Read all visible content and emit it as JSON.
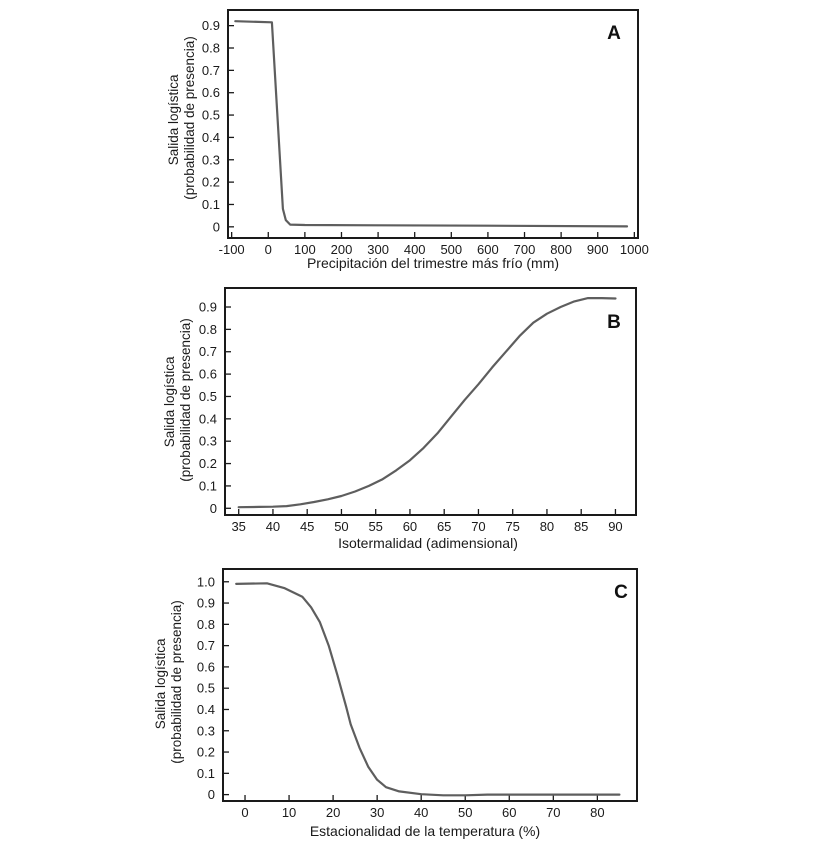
{
  "chart_data": [
    {
      "type": "line",
      "panel_label": "A",
      "xlabel": "Precipitación del trimestre más frío (mm)",
      "ylabel_lines": [
        "Salida logística",
        "(probabilidad de presencia)"
      ],
      "xlim": [
        -110,
        1010
      ],
      "ylim": [
        -0.05,
        0.97
      ],
      "xticks": [
        -100,
        0,
        100,
        200,
        300,
        400,
        500,
        600,
        700,
        800,
        900,
        1000
      ],
      "xtick_labels": [
        "-100",
        "0",
        "100",
        "200",
        "300",
        "400",
        "500",
        "600",
        "700",
        "800",
        "900",
        "1000"
      ],
      "yticks": [
        0,
        0.1,
        0.2,
        0.3,
        0.4,
        0.5,
        0.6,
        0.7,
        0.8,
        0.9
      ],
      "ytick_labels": [
        "0",
        "0.1",
        "0.2",
        "0.3",
        "0.4",
        "0.5",
        "0.6",
        "0.7",
        "0.8",
        "0.9"
      ],
      "series": [
        {
          "x": [
            -90,
            10,
            40,
            48,
            60,
            100,
            300,
            600,
            980
          ],
          "y": [
            0.92,
            0.915,
            0.08,
            0.03,
            0.01,
            0.008,
            0.007,
            0.005,
            0.002
          ]
        }
      ]
    },
    {
      "type": "line",
      "panel_label": "B",
      "xlabel": "Isotermalidad (adimensional)",
      "ylabel_lines": [
        "Salida logística",
        "(probabilidad de presencia)"
      ],
      "xlim": [
        33,
        93
      ],
      "ylim": [
        -0.03,
        0.985
      ],
      "xticks": [
        35,
        40,
        45,
        50,
        55,
        60,
        65,
        70,
        75,
        80,
        85,
        90
      ],
      "xtick_labels": [
        "35",
        "40",
        "45",
        "50",
        "55",
        "60",
        "65",
        "70",
        "75",
        "80",
        "85",
        "90"
      ],
      "yticks": [
        0,
        0.1,
        0.2,
        0.3,
        0.4,
        0.5,
        0.6,
        0.7,
        0.8,
        0.9
      ],
      "ytick_labels": [
        "0",
        "0.1",
        "0.2",
        "0.3",
        "0.4",
        "0.5",
        "0.6",
        "0.7",
        "0.8",
        "0.9"
      ],
      "series": [
        {
          "x": [
            35,
            38,
            40,
            42,
            44,
            46,
            48,
            50,
            52,
            54,
            56,
            58,
            60,
            62,
            64,
            66,
            68,
            70,
            72,
            74,
            76,
            78,
            80,
            82,
            84,
            86,
            88,
            90
          ],
          "y": [
            0.005,
            0.006,
            0.007,
            0.01,
            0.018,
            0.028,
            0.04,
            0.055,
            0.075,
            0.1,
            0.13,
            0.17,
            0.215,
            0.27,
            0.335,
            0.41,
            0.485,
            0.555,
            0.63,
            0.7,
            0.77,
            0.83,
            0.87,
            0.9,
            0.925,
            0.94,
            0.94,
            0.938
          ]
        }
      ]
    },
    {
      "type": "line",
      "panel_label": "C",
      "xlabel": "Estacionalidad de la temperatura (%)",
      "ylabel_lines": [
        "Salida logística",
        "(probabilidad de presencia)"
      ],
      "xlim": [
        -5,
        89
      ],
      "ylim": [
        -0.03,
        1.06
      ],
      "xticks": [
        0,
        10,
        20,
        30,
        40,
        50,
        60,
        70,
        80
      ],
      "xtick_labels": [
        "0",
        "10",
        "20",
        "30",
        "40",
        "50",
        "60",
        "70",
        "80"
      ],
      "yticks": [
        0,
        0.1,
        0.2,
        0.3,
        0.4,
        0.5,
        0.6,
        0.7,
        0.8,
        0.9,
        1.0
      ],
      "ytick_labels": [
        "0",
        "0.1",
        "0.2",
        "0.3",
        "0.4",
        "0.5",
        "0.6",
        "0.7",
        "0.8",
        "0.9",
        "1.0"
      ],
      "series": [
        {
          "x": [
            -2,
            5,
            9,
            13,
            15,
            17,
            19,
            21,
            23,
            24,
            26,
            28,
            30,
            32,
            35,
            40,
            45,
            50,
            55,
            60,
            70,
            85
          ],
          "y": [
            0.99,
            0.993,
            0.97,
            0.93,
            0.88,
            0.81,
            0.7,
            0.56,
            0.41,
            0.33,
            0.22,
            0.13,
            0.07,
            0.035,
            0.015,
            0.002,
            -0.003,
            -0.003,
            0.0,
            0.0,
            0.0,
            0.0
          ]
        }
      ]
    }
  ]
}
